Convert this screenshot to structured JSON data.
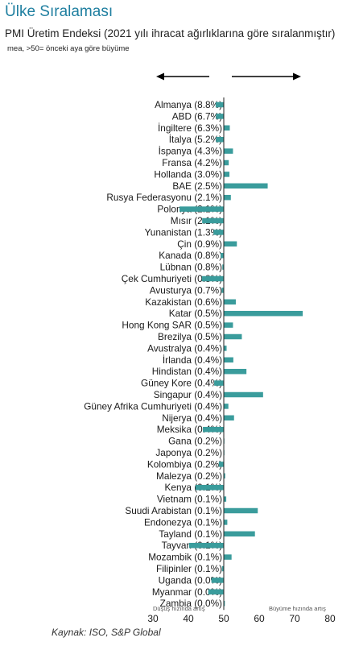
{
  "header": {
    "title": "Ülke Sıralaması",
    "subtitle": "PMI Üretim Endeksi (2021 yılı ihracat ağırlıklarına göre sıralanmıştır)",
    "note": "mea, >50= önceki aya göre büyüme"
  },
  "source": "Kaynak: ISO, S&P Global",
  "colors": {
    "bar": "#3a9c9c",
    "axis": "#222222",
    "arrow": "#000000"
  },
  "chart_data": {
    "type": "bar",
    "orientation": "horizontal",
    "baseline": 50,
    "xlim": [
      30,
      80
    ],
    "xticks": [
      30,
      40,
      50,
      60,
      70,
      80
    ],
    "left_direction_label": "Düşüş hızında artış",
    "right_direction_label": "Büyüme hızında artış",
    "categories": [
      "Almanya (8.8%)",
      "ABD (6.7%)",
      "İngiltere (6.3%)",
      "İtalya (5.2%)",
      "İspanya (4.3%)",
      "Fransa (4.2%)",
      "Hollanda (3.0%)",
      "BAE (2.5%)",
      "Rusya Federasyonu (2.1%)",
      "Polonya (2.1%)",
      "Mısır (2.1%)",
      "Yunanistan (1.3%)",
      "Çin (0.9%)",
      "Kanada (0.8%)",
      "Lübnan (0.8%)",
      "Çek Cumhuriyeti (0.8%)",
      "Avusturya (0.7%)",
      "Kazakistan (0.6%)",
      "Katar (0.5%)",
      "Hong Kong SAR (0.5%)",
      "Brezilya (0.5%)",
      "Avustralya (0.4%)",
      "İrlanda (0.4%)",
      "Hindistan (0.4%)",
      "Güney Kore (0.4%)",
      "Singapur (0.4%)",
      "Güney Afrika Cumhuriyeti (0.4%)",
      "Nijerya (0.4%)",
      "Meksika (0.4%)",
      "Gana (0.2%)",
      "Japonya (0.2%)",
      "Kolombiya (0.2%)",
      "Malezya (0.2%)",
      "Kenya (0.1%)",
      "Vietnam (0.1%)",
      "Suudi Arabistan (0.1%)",
      "Endonezya (0.1%)",
      "Tayland (0.1%)",
      "Tayvan (0.1%)",
      "Mozambik (0.1%)",
      "Filipinler (0.1%)",
      "Uganda (0.0%)",
      "Myanmar (0.0%)",
      "Zambia (0.0%)"
    ],
    "values": [
      47.7,
      47.8,
      51.7,
      47.8,
      52.6,
      51.4,
      51.6,
      62.4,
      52.0,
      37.5,
      43.9,
      47.1,
      53.7,
      49.1,
      49.6,
      43.8,
      49.4,
      53.4,
      72.3,
      52.6,
      55.1,
      50.8,
      52.7,
      56.4,
      47.3,
      61.1,
      51.3,
      52.9,
      44.1,
      50.1,
      50.1,
      48.6,
      50.4,
      42.0,
      50.7,
      59.6,
      51.0,
      58.8,
      40.2,
      52.2,
      49.5,
      46.5,
      45.6,
      50.3
    ]
  }
}
